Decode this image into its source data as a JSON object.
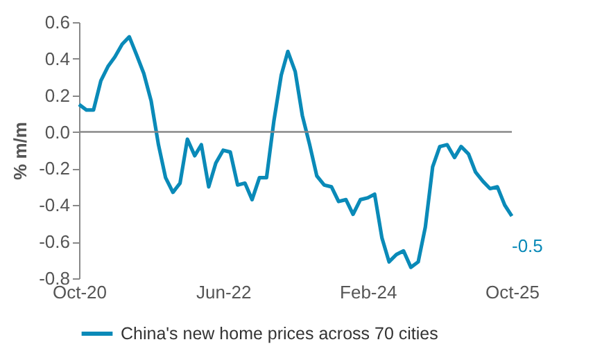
{
  "chart_data": {
    "type": "line",
    "ylabel": "% m/m",
    "legend": "bottom",
    "grid": false,
    "x": [
      "2020-10",
      "2020-11",
      "2020-12",
      "2021-01",
      "2021-02",
      "2021-03",
      "2021-04",
      "2021-05",
      "2021-06",
      "2021-07",
      "2021-08",
      "2021-09",
      "2021-10",
      "2021-11",
      "2021-12",
      "2022-01",
      "2022-02",
      "2022-03",
      "2022-04",
      "2022-05",
      "2022-06",
      "2022-07",
      "2022-08",
      "2022-09",
      "2022-10",
      "2022-11",
      "2022-12",
      "2023-01",
      "2023-02",
      "2023-03",
      "2023-04",
      "2023-05",
      "2023-06",
      "2023-07",
      "2023-08",
      "2023-09",
      "2023-10",
      "2023-11",
      "2023-12",
      "2024-01",
      "2024-02",
      "2024-03",
      "2024-04",
      "2024-05",
      "2024-06",
      "2024-07",
      "2024-08",
      "2024-09",
      "2024-10",
      "2024-11",
      "2024-12",
      "2025-01",
      "2025-02",
      "2025-03",
      "2025-04",
      "2025-05",
      "2025-06",
      "2025-07",
      "2025-08",
      "2025-09",
      "2025-10"
    ],
    "series": [
      {
        "name": "China's new home prices across 70 cities",
        "color": "#0a8ab8",
        "values": [
          0.15,
          0.12,
          0.12,
          0.28,
          0.36,
          0.41,
          0.48,
          0.52,
          0.42,
          0.32,
          0.17,
          -0.07,
          -0.25,
          -0.33,
          -0.28,
          -0.04,
          -0.13,
          -0.07,
          -0.3,
          -0.17,
          -0.1,
          -0.11,
          -0.29,
          -0.28,
          -0.37,
          -0.25,
          -0.25,
          0.06,
          0.31,
          0.44,
          0.33,
          0.09,
          -0.07,
          -0.24,
          -0.29,
          -0.3,
          -0.38,
          -0.37,
          -0.45,
          -0.37,
          -0.36,
          -0.34,
          -0.58,
          -0.71,
          -0.67,
          -0.65,
          -0.74,
          -0.71,
          -0.52,
          -0.19,
          -0.08,
          -0.07,
          -0.14,
          -0.08,
          -0.12,
          -0.22,
          -0.27,
          -0.31,
          -0.3,
          -0.4,
          -0.46
        ],
        "value_labels": [
          null,
          null,
          null,
          null,
          null,
          null,
          null,
          null,
          null,
          null,
          null,
          null,
          null,
          null,
          null,
          null,
          null,
          null,
          null,
          null,
          null,
          null,
          null,
          null,
          null,
          null,
          null,
          null,
          null,
          null,
          null,
          null,
          null,
          null,
          null,
          null,
          null,
          null,
          null,
          null,
          null,
          null,
          null,
          null,
          null,
          null,
          null,
          null,
          null,
          null,
          null,
          null,
          null,
          null,
          null,
          null,
          null,
          null,
          null,
          null,
          "-0.5"
        ]
      }
    ],
    "xlim": [
      "2020-10",
      "2025-10"
    ],
    "xticks": [
      {
        "value": "2020-10",
        "label": "Oct-20"
      },
      {
        "value": "2022-06",
        "label": "Jun-22"
      },
      {
        "value": "2024-02",
        "label": "Feb-24"
      },
      {
        "value": "2025-10",
        "label": "Oct-25"
      }
    ],
    "ylim": [
      -0.8,
      0.6
    ],
    "yticks": [
      {
        "value": -0.8,
        "label": "-0.8"
      },
      {
        "value": -0.6,
        "label": "-0.6"
      },
      {
        "value": -0.4,
        "label": "-0.4"
      },
      {
        "value": -0.2,
        "label": "-0.2"
      },
      {
        "value": 0,
        "label": "0.0"
      },
      {
        "value": 0.2,
        "label": "0.2"
      },
      {
        "value": 0.4,
        "label": "0.4"
      },
      {
        "value": 0.6,
        "label": "0.6"
      }
    ],
    "ref_lines": [
      {
        "axis": "y",
        "value": 0,
        "color": "#888888"
      }
    ]
  }
}
